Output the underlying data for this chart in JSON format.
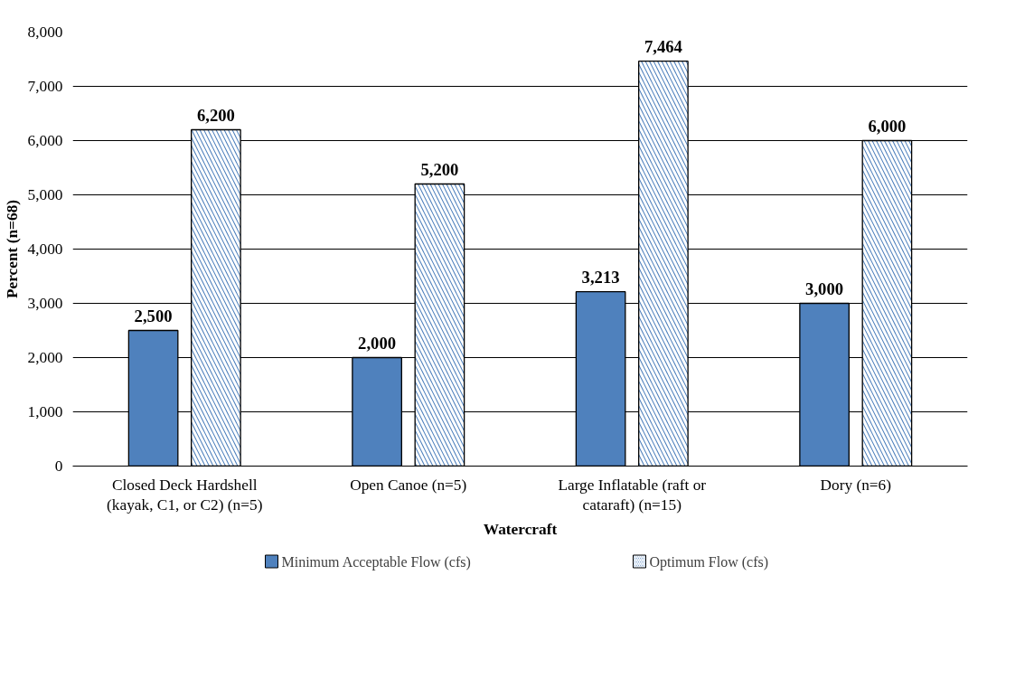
{
  "chart_data": {
    "type": "bar",
    "xlabel": "Watercraft",
    "ylabel": "Percent (n=68)",
    "categories": [
      "Closed Deck Hardshell\n(kayak, C1, or C2) (n=5)",
      "Open Canoe (n=5)",
      "Large Inflatable (raft or\ncataraft) (n=15)",
      "Dory (n=6)"
    ],
    "series": [
      {
        "name": "Minimum Acceptable Flow (cfs)",
        "color": "#4f81bd",
        "values": [
          2500,
          2000,
          3213,
          3000
        ],
        "value_labels": [
          "2,500",
          "2,000",
          "3,213",
          "3,000"
        ]
      },
      {
        "name": "Optimum Flow (cfs)",
        "color": "#4f81bd",
        "values": [
          6200,
          5200,
          7464,
          6000
        ],
        "value_labels": [
          "6,200",
          "5,200",
          "7,464",
          "6,000"
        ]
      }
    ],
    "ylim": [
      0,
      8000
    ],
    "yticks": [
      0,
      {
        "value": 1000,
        "label": "1,000"
      },
      {
        "value": 2000,
        "label": "2,000"
      },
      {
        "value": 3000,
        "label": "3,000"
      },
      {
        "value": 4000,
        "label": "4,000"
      },
      {
        "value": 5000,
        "label": "5,000"
      },
      {
        "value": 6000,
        "label": "6,000"
      },
      {
        "value": 7000,
        "label": "7,000"
      },
      {
        "value": 8000,
        "label": "8,000"
      }
    ],
    "grid": "y",
    "legend": "bottom"
  }
}
